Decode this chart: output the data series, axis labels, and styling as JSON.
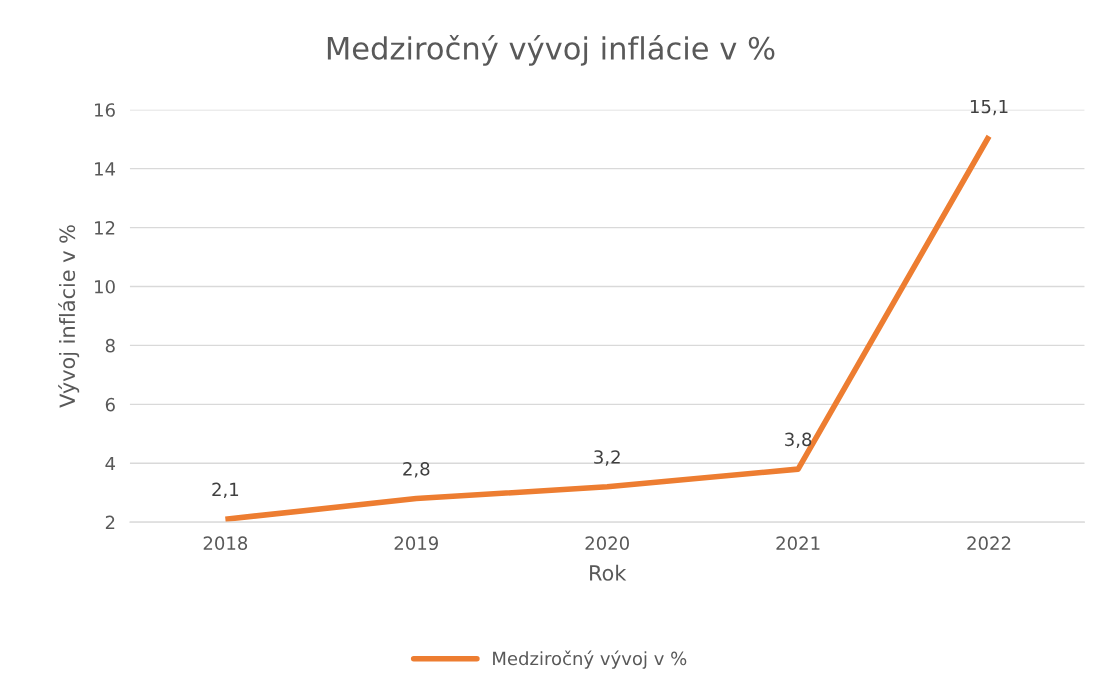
{
  "chart_data": {
    "type": "line",
    "title": "Medziročný vývoj inflácie v %",
    "xlabel": "Rok",
    "ylabel": "Vývoj inflácie v %",
    "categories": [
      "2018",
      "2019",
      "2020",
      "2021",
      "2022"
    ],
    "series": [
      {
        "name": "Medziročný vývoj v %",
        "color": "#ed7d31",
        "values": [
          2.1,
          2.8,
          3.2,
          3.8,
          15.1
        ],
        "value_labels": [
          "2,1",
          "2,8",
          "3,2",
          "3,8",
          "15,1"
        ]
      }
    ],
    "ylim": [
      2,
      16
    ],
    "yticks": [
      2,
      4,
      6,
      8,
      10,
      12,
      14,
      16
    ],
    "grid": "y",
    "legend": "bottom",
    "marker": "none",
    "line_style": "solid"
  }
}
